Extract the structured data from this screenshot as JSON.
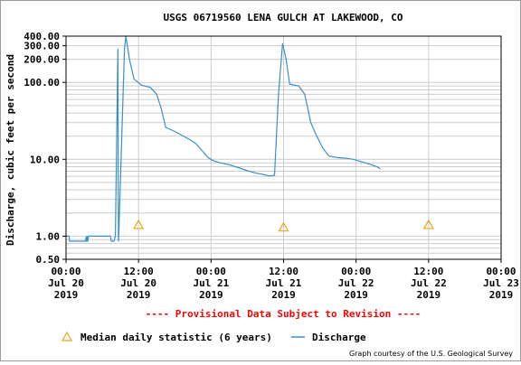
{
  "chart_data": {
    "type": "line",
    "title": "USGS 06719560 LENA GULCH AT LAKEWOOD, CO",
    "ylabel": "Discharge, cubic feet per second",
    "y_scale": "log",
    "ylim": [
      0.5,
      400
    ],
    "y_ticks": [
      {
        "value": 0.5,
        "label": "0.50"
      },
      {
        "value": 1,
        "label": "1.00"
      },
      {
        "value": 10,
        "label": "10.00"
      },
      {
        "value": 100,
        "label": "100.00"
      },
      {
        "value": 200,
        "label": "200.00"
      },
      {
        "value": 300,
        "label": "300.00"
      },
      {
        "value": 400,
        "label": "400.00"
      }
    ],
    "xlim": [
      "2019-07-20 00:00",
      "2019-07-23 00:00"
    ],
    "x_ticks": [
      {
        "value": "2019-07-20 00:00",
        "time": "00:00",
        "date": "Jul 20",
        "year": "2019"
      },
      {
        "value": "2019-07-20 12:00",
        "time": "12:00",
        "date": "Jul 20",
        "year": "2019"
      },
      {
        "value": "2019-07-21 00:00",
        "time": "00:00",
        "date": "Jul 21",
        "year": "2019"
      },
      {
        "value": "2019-07-21 12:00",
        "time": "12:00",
        "date": "Jul 21",
        "year": "2019"
      },
      {
        "value": "2019-07-22 00:00",
        "time": "00:00",
        "date": "Jul 22",
        "year": "2019"
      },
      {
        "value": "2019-07-22 12:00",
        "time": "12:00",
        "date": "Jul 22",
        "year": "2019"
      },
      {
        "value": "2019-07-23 00:00",
        "time": "00:00",
        "date": "Jul 23",
        "year": "2019"
      }
    ],
    "grid": true,
    "series": [
      {
        "name": "Discharge",
        "color": "#3a8fc9",
        "points": [
          [
            "2019-07-20 00:00",
            1.0
          ],
          [
            "2019-07-20 00:30",
            1.0
          ],
          [
            "2019-07-20 00:36",
            0.86
          ],
          [
            "2019-07-20 03:00",
            0.86
          ],
          [
            "2019-07-20 03:15",
            0.86
          ],
          [
            "2019-07-20 03:19",
            0.98
          ],
          [
            "2019-07-20 03:25",
            0.86
          ],
          [
            "2019-07-20 03:31",
            0.98
          ],
          [
            "2019-07-20 03:36",
            0.86
          ],
          [
            "2019-07-20 03:43",
            1.0
          ],
          [
            "2019-07-20 07:20",
            1.0
          ],
          [
            "2019-07-20 07:30",
            0.86
          ],
          [
            "2019-07-20 07:56",
            0.86
          ],
          [
            "2019-07-20 08:10",
            1.0
          ],
          [
            "2019-07-20 08:35",
            270
          ],
          [
            "2019-07-20 08:40",
            1.0
          ],
          [
            "2019-07-20 08:42",
            0.86
          ],
          [
            "2019-07-20 09:40",
            270
          ],
          [
            "2019-07-20 09:55",
            400
          ],
          [
            "2019-07-20 10:30",
            200
          ],
          [
            "2019-07-20 11:15",
            110
          ],
          [
            "2019-07-20 12:30",
            92
          ],
          [
            "2019-07-20 14:00",
            86
          ],
          [
            "2019-07-20 15:00",
            70
          ],
          [
            "2019-07-20 15:45",
            46
          ],
          [
            "2019-07-20 16:30",
            26
          ],
          [
            "2019-07-20 18:00",
            23
          ],
          [
            "2019-07-20 20:30",
            18
          ],
          [
            "2019-07-20 21:30",
            16
          ],
          [
            "2019-07-20 22:30",
            13
          ],
          [
            "2019-07-20 23:30",
            10.5
          ],
          [
            "2019-07-21 00:30",
            9.5
          ],
          [
            "2019-07-21 01:30",
            9
          ],
          [
            "2019-07-21 03:00",
            8.5
          ],
          [
            "2019-07-21 04:30",
            7.8
          ],
          [
            "2019-07-21 06:00",
            7.1
          ],
          [
            "2019-07-21 07:30",
            6.6
          ],
          [
            "2019-07-21 08:30",
            6.4
          ],
          [
            "2019-07-21 09:30",
            6.1
          ],
          [
            "2019-07-21 10:00",
            6.1
          ],
          [
            "2019-07-21 10:30",
            6.2
          ],
          [
            "2019-07-21 11:10",
            70
          ],
          [
            "2019-07-21 11:50",
            320
          ],
          [
            "2019-07-21 12:25",
            200
          ],
          [
            "2019-07-21 13:00",
            95
          ],
          [
            "2019-07-21 14:30",
            90
          ],
          [
            "2019-07-21 15:30",
            70
          ],
          [
            "2019-07-21 16:30",
            30
          ],
          [
            "2019-07-21 17:30",
            20
          ],
          [
            "2019-07-21 18:30",
            14
          ],
          [
            "2019-07-21 19:30",
            11
          ],
          [
            "2019-07-21 21:00",
            10.5
          ],
          [
            "2019-07-21 22:30",
            10.3
          ],
          [
            "2019-07-21 23:30",
            10
          ],
          [
            "2019-07-22 00:30",
            9.5
          ],
          [
            "2019-07-22 01:30",
            9
          ],
          [
            "2019-07-22 02:30",
            8.5
          ],
          [
            "2019-07-22 03:30",
            8
          ],
          [
            "2019-07-22 04:00",
            7.5
          ]
        ]
      },
      {
        "name": "Median daily statistic (6 years)",
        "color": "#e8a317",
        "marker": "triangle",
        "points": [
          [
            "2019-07-20 12:00",
            1.4
          ],
          [
            "2019-07-21 12:00",
            1.3
          ],
          [
            "2019-07-22 12:00",
            1.4
          ]
        ]
      }
    ],
    "revision_note": "---- Provisional Data Subject to Revision ----",
    "legend": {
      "position": "bottom",
      "items": [
        {
          "label": "Median daily statistic (6 years)",
          "symbol": "triangle",
          "color": "#e8a317"
        },
        {
          "label": "Discharge",
          "symbol": "line",
          "color": "#3a8fc9"
        }
      ]
    }
  },
  "credit": "Graph courtesy of the U.S. Geological Survey"
}
